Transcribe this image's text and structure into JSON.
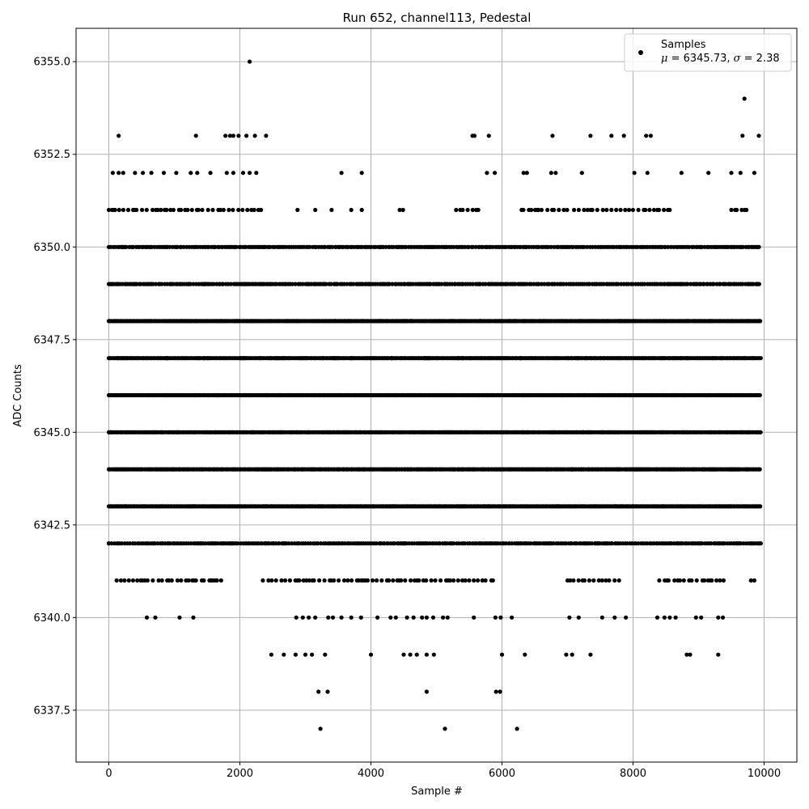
{
  "chart_data": {
    "type": "scatter",
    "title": "Run 652, channel113, Pedestal",
    "xlabel": "Sample #",
    "ylabel": "ADC Counts",
    "xlim": [
      -500,
      10500
    ],
    "ylim": [
      6336.1,
      6355.9
    ],
    "xticks": [
      0,
      2000,
      4000,
      6000,
      8000,
      10000
    ],
    "yticks": [
      6337.5,
      6340.0,
      6342.5,
      6345.0,
      6347.5,
      6350.0,
      6352.5,
      6355.0
    ],
    "xtick_labels": [
      "0",
      "2000",
      "4000",
      "6000",
      "8000",
      "10000"
    ],
    "ytick_labels": [
      "6337.5",
      "6340.0",
      "6342.5",
      "6345.0",
      "6347.5",
      "6350.0",
      "6352.5",
      "6355.0"
    ],
    "grid": true,
    "marker_color": "#000000",
    "legend": {
      "position": "top-right",
      "label": "Samples",
      "stats_mu_symbol": "μ",
      "stats_mu": " = 6345.73, ",
      "stats_sigma_symbol": "σ",
      "stats_sigma": " = 2.38"
    },
    "x_range": [
      0,
      9950
    ],
    "levels": [
      {
        "y": 6343,
        "x_ranges": [
          [
            0,
            9950
          ]
        ],
        "density": "dense"
      },
      {
        "y": 6344,
        "x_ranges": [
          [
            0,
            9950
          ]
        ],
        "density": "dense"
      },
      {
        "y": 6345,
        "x_ranges": [
          [
            0,
            9950
          ]
        ],
        "density": "dense"
      },
      {
        "y": 6346,
        "x_ranges": [
          [
            0,
            9950
          ]
        ],
        "density": "dense"
      },
      {
        "y": 6347,
        "x_ranges": [
          [
            0,
            9950
          ]
        ],
        "density": "dense"
      },
      {
        "y": 6348,
        "x_ranges": [
          [
            0,
            9950
          ]
        ],
        "density": "dense"
      },
      {
        "y": 6349,
        "x_ranges": [
          [
            0,
            9950
          ]
        ],
        "density": "medium"
      },
      {
        "y": 6342,
        "x_ranges": [
          [
            0,
            9950
          ]
        ],
        "density": "medium"
      },
      {
        "y": 6350,
        "x_ranges": [
          [
            0,
            9950
          ]
        ],
        "density": "medium"
      },
      {
        "y": 6341,
        "x_ranges": [
          [
            120,
            1720
          ],
          [
            2350,
            5900
          ],
          [
            7000,
            7800
          ],
          [
            8400,
            9400
          ],
          [
            9800,
            9870
          ]
        ],
        "density": "sparse"
      },
      {
        "y": 6351,
        "x_ranges": [
          [
            0,
            2400
          ],
          [
            5300,
            5700
          ],
          [
            6300,
            7000
          ],
          [
            7100,
            8600
          ],
          [
            9500,
            9750
          ]
        ],
        "density": "sparse"
      }
    ],
    "points": [
      [
        0,
        6342
      ],
      [
        2150,
        6355
      ],
      [
        9700,
        6354
      ],
      [
        150,
        6353
      ],
      [
        1330,
        6353
      ],
      [
        1780,
        6353
      ],
      [
        1850,
        6353
      ],
      [
        1900,
        6353
      ],
      [
        1980,
        6353
      ],
      [
        2100,
        6353
      ],
      [
        2230,
        6353
      ],
      [
        2400,
        6353
      ],
      [
        5550,
        6353
      ],
      [
        5580,
        6353
      ],
      [
        5800,
        6353
      ],
      [
        6770,
        6353
      ],
      [
        7350,
        6353
      ],
      [
        7670,
        6353
      ],
      [
        7860,
        6353
      ],
      [
        8200,
        6353
      ],
      [
        8270,
        6353
      ],
      [
        9670,
        6353
      ],
      [
        9920,
        6353
      ],
      [
        60,
        6352
      ],
      [
        150,
        6352
      ],
      [
        220,
        6352
      ],
      [
        400,
        6352
      ],
      [
        520,
        6352
      ],
      [
        650,
        6352
      ],
      [
        840,
        6352
      ],
      [
        1030,
        6352
      ],
      [
        1250,
        6352
      ],
      [
        1350,
        6352
      ],
      [
        1550,
        6352
      ],
      [
        1800,
        6352
      ],
      [
        1900,
        6352
      ],
      [
        2050,
        6352
      ],
      [
        2150,
        6352
      ],
      [
        2250,
        6352
      ],
      [
        3550,
        6352
      ],
      [
        3860,
        6352
      ],
      [
        5770,
        6352
      ],
      [
        5890,
        6352
      ],
      [
        6330,
        6352
      ],
      [
        6380,
        6352
      ],
      [
        6750,
        6352
      ],
      [
        6820,
        6352
      ],
      [
        7220,
        6352
      ],
      [
        8020,
        6352
      ],
      [
        8220,
        6352
      ],
      [
        8740,
        6352
      ],
      [
        9150,
        6352
      ],
      [
        9500,
        6352
      ],
      [
        9640,
        6352
      ],
      [
        9850,
        6352
      ],
      [
        2880,
        6351
      ],
      [
        3150,
        6351
      ],
      [
        3400,
        6351
      ],
      [
        3700,
        6351
      ],
      [
        3860,
        6351
      ],
      [
        4440,
        6351
      ],
      [
        4490,
        6351
      ],
      [
        580,
        6340
      ],
      [
        710,
        6340
      ],
      [
        1080,
        6340
      ],
      [
        1290,
        6340
      ],
      [
        2860,
        6340
      ],
      [
        2960,
        6340
      ],
      [
        3050,
        6340
      ],
      [
        3150,
        6340
      ],
      [
        3350,
        6340
      ],
      [
        3420,
        6340
      ],
      [
        3550,
        6340
      ],
      [
        3700,
        6340
      ],
      [
        3850,
        6340
      ],
      [
        4100,
        6340
      ],
      [
        4300,
        6340
      ],
      [
        4380,
        6340
      ],
      [
        4550,
        6340
      ],
      [
        4650,
        6340
      ],
      [
        4780,
        6340
      ],
      [
        4850,
        6340
      ],
      [
        4950,
        6340
      ],
      [
        5100,
        6340
      ],
      [
        5170,
        6340
      ],
      [
        5570,
        6340
      ],
      [
        5900,
        6340
      ],
      [
        5980,
        6340
      ],
      [
        6150,
        6340
      ],
      [
        7030,
        6340
      ],
      [
        7170,
        6340
      ],
      [
        7530,
        6340
      ],
      [
        7720,
        6340
      ],
      [
        7890,
        6340
      ],
      [
        8370,
        6340
      ],
      [
        8480,
        6340
      ],
      [
        8560,
        6340
      ],
      [
        8650,
        6340
      ],
      [
        8960,
        6340
      ],
      [
        9040,
        6340
      ],
      [
        9300,
        6340
      ],
      [
        9370,
        6340
      ],
      [
        2480,
        6339
      ],
      [
        2670,
        6339
      ],
      [
        2850,
        6339
      ],
      [
        3000,
        6339
      ],
      [
        3100,
        6339
      ],
      [
        3300,
        6339
      ],
      [
        4000,
        6339
      ],
      [
        4500,
        6339
      ],
      [
        4600,
        6339
      ],
      [
        4700,
        6339
      ],
      [
        4850,
        6339
      ],
      [
        4960,
        6339
      ],
      [
        6000,
        6339
      ],
      [
        6350,
        6339
      ],
      [
        6980,
        6339
      ],
      [
        7070,
        6339
      ],
      [
        7350,
        6339
      ],
      [
        8820,
        6339
      ],
      [
        8870,
        6339
      ],
      [
        9300,
        6339
      ],
      [
        3200,
        6338
      ],
      [
        3340,
        6338
      ],
      [
        4850,
        6338
      ],
      [
        5910,
        6338
      ],
      [
        5970,
        6338
      ],
      [
        3230,
        6337
      ],
      [
        5130,
        6337
      ],
      [
        6230,
        6337
      ]
    ]
  }
}
